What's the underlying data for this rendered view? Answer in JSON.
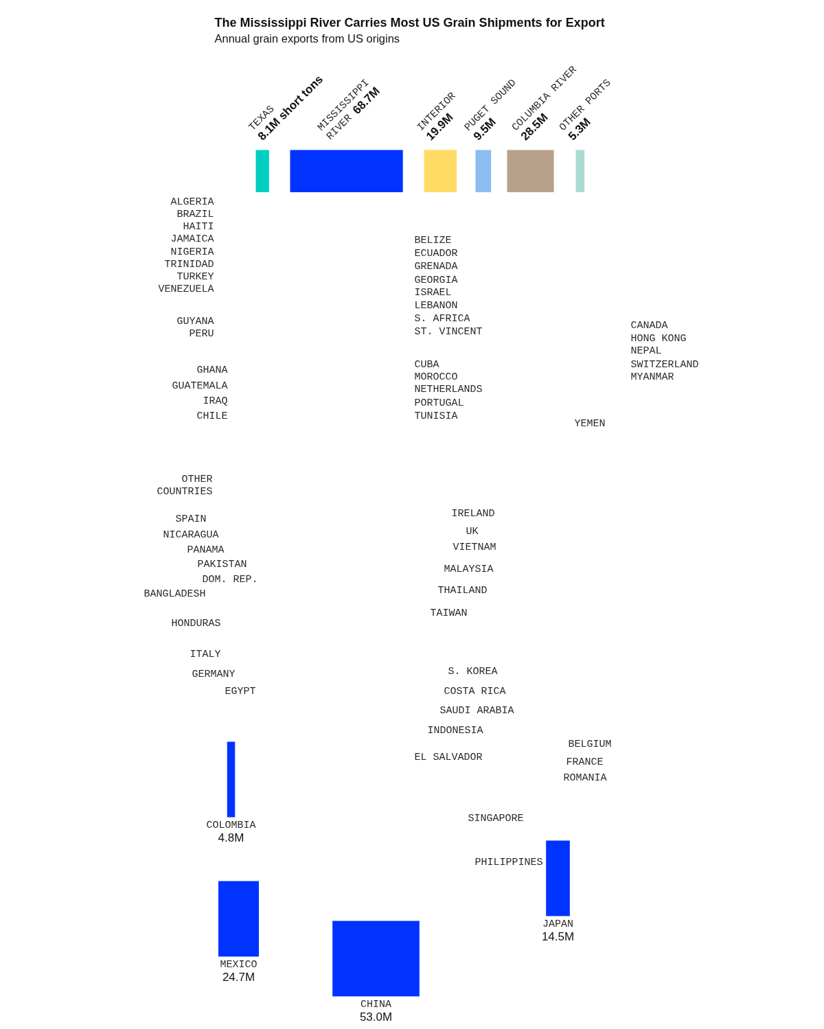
{
  "chart_data": [
    {
      "type": "other",
      "title": "The Mississippi River Carries Most US Grain Shipments for Export",
      "subtitle": "Annual grain exports from US origins",
      "categories": [
        "TEXAS",
        "MISSISSIPPI RIVER",
        "INTERIOR",
        "PUGET SOUND",
        "COLUMBIA RIVER",
        "OTHER PORTS"
      ],
      "values": [
        8.1,
        68.7,
        19.9,
        9.5,
        28.5,
        5.3
      ],
      "value_labels": [
        "8.1M short tons",
        "68.7M",
        "19.9M",
        "9.5M",
        "28.5M",
        "5.3M"
      ],
      "colors": [
        "#00cfc1",
        "#0033ff",
        "#ffdb66",
        "#8bbcf2",
        "#b8a18a",
        "#aadcd2"
      ]
    },
    {
      "type": "other",
      "categories": [
        "ALGERIA",
        "BRAZIL",
        "HAITI",
        "JAMAICA",
        "NIGERIA",
        "TRINIDAD",
        "TURKEY",
        "VENEZUELA",
        "GUYANA",
        "PERU",
        "GHANA",
        "GUATEMALA",
        "IRAQ",
        "CHILE",
        "OTHER COUNTRIES",
        "SPAIN",
        "NICARAGUA",
        "PANAMA",
        "PAKISTAN",
        "DOM. REP.",
        "BANGLADESH",
        "HONDURAS",
        "ITALY",
        "GERMANY",
        "EGYPT",
        "COLOMBIA",
        "MEXICO",
        "CHINA",
        "BELIZE",
        "ECUADOR",
        "GRENADA",
        "GEORGIA",
        "ISRAEL",
        "LEBANON",
        "S. AFRICA",
        "ST. VINCENT",
        "CUBA",
        "MOROCCO",
        "NETHERLANDS",
        "PORTUGAL",
        "TUNISIA",
        "CANADA",
        "HONG KONG",
        "NEPAL",
        "SWITZERLAND",
        "MYANMAR",
        "YEMEN",
        "IRELAND",
        "UK",
        "VIETNAM",
        "MALAYSIA",
        "THAILAND",
        "TAIWAN",
        "S. KOREA",
        "COSTA RICA",
        "SAUDI ARABIA",
        "INDONESIA",
        "EL SALVADOR",
        "BELGIUM",
        "FRANCE",
        "ROMANIA",
        "SINGAPORE",
        "PHILIPPINES",
        "JAPAN"
      ],
      "values": [
        null,
        null,
        null,
        null,
        null,
        null,
        null,
        null,
        null,
        null,
        null,
        null,
        null,
        null,
        null,
        null,
        null,
        null,
        null,
        null,
        null,
        null,
        null,
        null,
        null,
        4.8,
        24.7,
        53.0,
        null,
        null,
        null,
        null,
        null,
        null,
        null,
        null,
        null,
        null,
        null,
        null,
        null,
        null,
        null,
        null,
        null,
        null,
        null,
        null,
        null,
        null,
        null,
        null,
        null,
        null,
        null,
        null,
        null,
        null,
        null,
        null,
        null,
        null,
        null,
        14.5
      ],
      "value_labels": [
        null,
        null,
        null,
        null,
        null,
        null,
        null,
        null,
        null,
        null,
        null,
        null,
        null,
        null,
        null,
        null,
        null,
        null,
        null,
        null,
        null,
        null,
        null,
        null,
        null,
        "4.8M",
        "24.7M",
        "53.0M",
        null,
        null,
        null,
        null,
        null,
        null,
        null,
        null,
        null,
        null,
        null,
        null,
        null,
        null,
        null,
        null,
        null,
        null,
        null,
        null,
        null,
        null,
        null,
        null,
        null,
        null,
        null,
        null,
        null,
        null,
        null,
        null,
        null,
        null,
        null,
        "14.5M"
      ],
      "colors": [
        null,
        null,
        null,
        null,
        null,
        null,
        null,
        null,
        null,
        null,
        null,
        null,
        null,
        null,
        null,
        null,
        null,
        null,
        null,
        null,
        null,
        null,
        null,
        null,
        null,
        "#0033ff",
        "#0033ff",
        "#0033ff",
        null,
        null,
        null,
        null,
        null,
        null,
        null,
        null,
        null,
        null,
        null,
        null,
        null,
        null,
        null,
        null,
        null,
        null,
        null,
        null,
        null,
        null,
        null,
        null,
        null,
        null,
        null,
        null,
        null,
        null,
        null,
        null,
        null,
        null,
        null,
        "#0033ff"
      ]
    }
  ]
}
